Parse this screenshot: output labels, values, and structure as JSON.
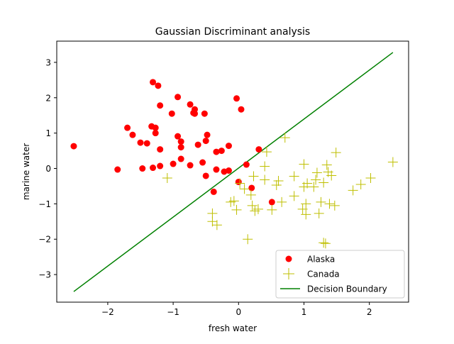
{
  "chart_data": {
    "type": "scatter",
    "title": "Gaussian Discriminant analysis",
    "xlabel": "fresh water",
    "ylabel": "marine water",
    "xlim": [
      -2.78,
      2.6
    ],
    "ylim": [
      -3.78,
      3.6
    ],
    "xticks": [
      -2,
      -1,
      0,
      1,
      2
    ],
    "yticks": [
      -3,
      -2,
      -1,
      0,
      1,
      2,
      3
    ],
    "grid": false,
    "legend_position": "lower-right",
    "series": [
      {
        "name": "Alaska",
        "marker": "circle",
        "color": "#ff0000",
        "points": [
          [
            -2.52,
            0.63
          ],
          [
            -1.85,
            -0.03
          ],
          [
            -1.7,
            1.15
          ],
          [
            -1.62,
            0.95
          ],
          [
            -1.5,
            0.73
          ],
          [
            -1.47,
            0.0
          ],
          [
            -1.4,
            0.71
          ],
          [
            -1.33,
            1.19
          ],
          [
            -1.31,
            2.44
          ],
          [
            -1.31,
            0.02
          ],
          [
            -1.27,
            1.15
          ],
          [
            -1.27,
            1.0
          ],
          [
            -1.23,
            2.34
          ],
          [
            -1.2,
            1.78
          ],
          [
            -1.2,
            0.54
          ],
          [
            -1.2,
            0.07
          ],
          [
            -1.02,
            1.55
          ],
          [
            -1.0,
            0.13
          ],
          [
            -0.93,
            2.02
          ],
          [
            -0.93,
            0.91
          ],
          [
            -0.88,
            0.76
          ],
          [
            -0.88,
            0.6
          ],
          [
            -0.88,
            0.27
          ],
          [
            -0.74,
            1.81
          ],
          [
            -0.74,
            0.09
          ],
          [
            -0.69,
            1.57
          ],
          [
            -0.67,
            1.67
          ],
          [
            -0.67,
            1.55
          ],
          [
            -0.62,
            0.67
          ],
          [
            -0.55,
            0.17
          ],
          [
            -0.52,
            1.55
          ],
          [
            -0.5,
            0.78
          ],
          [
            -0.5,
            -0.21
          ],
          [
            -0.48,
            0.95
          ],
          [
            -0.38,
            -0.66
          ],
          [
            -0.34,
            0.47
          ],
          [
            -0.34,
            -0.03
          ],
          [
            -0.26,
            0.5
          ],
          [
            -0.22,
            -0.09
          ],
          [
            -0.15,
            0.64
          ],
          [
            -0.15,
            -0.06
          ],
          [
            -0.03,
            1.98
          ],
          [
            0.0,
            -0.38
          ],
          [
            0.04,
            1.67
          ],
          [
            0.12,
            0.11
          ],
          [
            0.2,
            -0.55
          ],
          [
            0.31,
            0.54
          ],
          [
            0.51,
            -0.95
          ]
        ]
      },
      {
        "name": "Canada",
        "marker": "plus",
        "color": "#bfbf00",
        "points": [
          [
            -1.09,
            -0.27
          ],
          [
            -0.4,
            -1.27
          ],
          [
            -0.4,
            -1.5
          ],
          [
            -0.33,
            -1.6
          ],
          [
            -0.12,
            -0.95
          ],
          [
            -0.07,
            -0.92
          ],
          [
            -0.03,
            -1.17
          ],
          [
            0.02,
            -0.42
          ],
          [
            0.09,
            -0.58
          ],
          [
            0.14,
            -2.0
          ],
          [
            0.19,
            -0.75
          ],
          [
            0.21,
            -1.05
          ],
          [
            0.23,
            -0.22
          ],
          [
            0.25,
            -1.2
          ],
          [
            0.3,
            -1.15
          ],
          [
            0.4,
            0.06
          ],
          [
            0.4,
            -0.32
          ],
          [
            0.43,
            0.47
          ],
          [
            0.51,
            -1.17
          ],
          [
            0.58,
            -0.47
          ],
          [
            0.61,
            -0.35
          ],
          [
            0.66,
            -0.95
          ],
          [
            0.71,
            0.87
          ],
          [
            0.85,
            -0.78
          ],
          [
            0.85,
            -0.22
          ],
          [
            0.98,
            -1.15
          ],
          [
            1.0,
            0.12
          ],
          [
            1.0,
            -0.52
          ],
          [
            1.03,
            -1.0
          ],
          [
            1.03,
            -1.3
          ],
          [
            1.05,
            -0.42
          ],
          [
            1.15,
            -0.52
          ],
          [
            1.18,
            -0.32
          ],
          [
            1.2,
            -0.12
          ],
          [
            1.23,
            -1.27
          ],
          [
            1.26,
            -0.95
          ],
          [
            1.3,
            -0.4
          ],
          [
            1.3,
            -2.1
          ],
          [
            1.33,
            -2.12
          ],
          [
            1.35,
            0.1
          ],
          [
            1.37,
            -0.1
          ],
          [
            1.39,
            -1.0
          ],
          [
            1.42,
            -0.2
          ],
          [
            1.47,
            -1.05
          ],
          [
            1.49,
            0.45
          ],
          [
            1.75,
            -0.62
          ],
          [
            1.87,
            -0.45
          ],
          [
            2.02,
            -0.27
          ],
          [
            2.36,
            0.18
          ]
        ]
      },
      {
        "name": "Decision Boundary",
        "marker": "line",
        "color": "#008000",
        "points": [
          [
            -2.52,
            -3.48
          ],
          [
            2.36,
            3.28
          ]
        ]
      }
    ]
  }
}
